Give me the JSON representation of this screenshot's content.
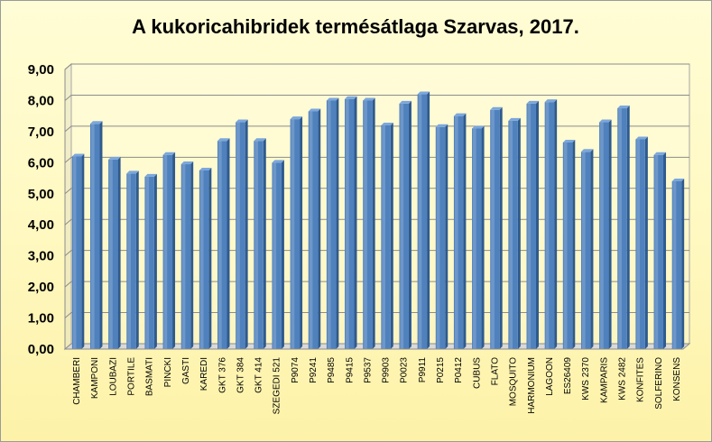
{
  "chart_data": {
    "type": "bar",
    "title": "A kukoricahibridek termésátlaga Szarvas, 2017.",
    "xlabel": "",
    "ylabel": "",
    "ylim": [
      0,
      9
    ],
    "ytick_labels": [
      "0,00",
      "1,00",
      "2,00",
      "3,00",
      "4,00",
      "5,00",
      "6,00",
      "7,00",
      "8,00",
      "9,00"
    ],
    "grid": true,
    "legend": "none",
    "bar_color": "#4f81bd",
    "categories": [
      "CHAMBERI",
      "KAMPONI",
      "LOUBAZI",
      "PORTILE",
      "BASMATI",
      "PINCKI",
      "GASTI",
      "KAREDI",
      "GKT 376",
      "GKT 384",
      "GKT 414",
      "SZEGEDI 521",
      "P9074",
      "P9241",
      "P9485",
      "P9415",
      "P9537",
      "P9903",
      "P0023",
      "P9911",
      "P0215",
      "P0412",
      "CUBUS",
      "FLATO",
      "MOSQUITO",
      "HARMONIUM",
      "LAGOON",
      "ES26409",
      "KWS 2370",
      "KAMPARIS",
      "KWS 2482",
      "KONFITES",
      "SOLFERINO",
      "KONSENS"
    ],
    "values": [
      6.2,
      7.25,
      6.1,
      5.65,
      5.55,
      6.25,
      5.95,
      5.75,
      6.7,
      7.3,
      6.7,
      6.0,
      7.4,
      7.65,
      8.0,
      8.05,
      8.0,
      7.2,
      7.9,
      8.2,
      7.15,
      7.5,
      7.1,
      7.7,
      7.35,
      7.9,
      7.95,
      6.65,
      6.35,
      7.3,
      7.75,
      6.75,
      6.25,
      5.4
    ]
  }
}
